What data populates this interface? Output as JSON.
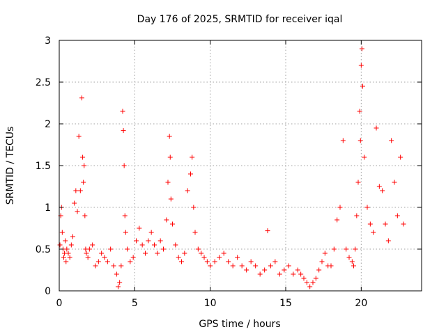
{
  "chart_data": {
    "type": "scatter",
    "title": "Day 176 of 2025, SRMTID for receiver iqal",
    "xlabel": "GPS time / hours",
    "ylabel": "SRMTID / TECUs",
    "xlim": [
      0,
      24
    ],
    "ylim": [
      0,
      3
    ],
    "x_ticks": [
      0,
      5,
      10,
      15,
      20
    ],
    "x_tick_labels": [
      "0",
      "5",
      "10",
      "15",
      "20"
    ],
    "y_ticks": [
      0,
      0.5,
      1,
      1.5,
      2,
      2.5,
      3
    ],
    "y_tick_labels": [
      "0",
      "0.5",
      "1",
      "1.5",
      "2",
      "2.5",
      "3"
    ],
    "grid": true,
    "marker": "+",
    "color": "#ff0000",
    "series": [
      {
        "name": "SRMTID",
        "x": [
          0.05,
          0.1,
          0.15,
          0.2,
          0.25,
          0.3,
          0.35,
          0.4,
          0.45,
          0.5,
          0.6,
          0.7,
          0.8,
          0.9,
          1.0,
          1.1,
          1.2,
          1.3,
          1.4,
          1.5,
          1.55,
          1.6,
          1.65,
          1.7,
          1.75,
          1.8,
          1.9,
          2.0,
          2.2,
          2.4,
          2.6,
          2.8,
          3.0,
          3.2,
          3.4,
          3.6,
          3.8,
          3.9,
          4.0,
          4.1,
          4.2,
          4.25,
          4.3,
          4.35,
          4.4,
          4.5,
          4.7,
          4.9,
          5.1,
          5.3,
          5.5,
          5.7,
          5.9,
          6.1,
          6.3,
          6.5,
          6.7,
          6.9,
          7.1,
          7.2,
          7.3,
          7.35,
          7.4,
          7.5,
          7.7,
          7.9,
          8.1,
          8.3,
          8.5,
          8.7,
          8.8,
          8.9,
          9.0,
          9.2,
          9.4,
          9.6,
          9.8,
          10.0,
          10.3,
          10.6,
          10.9,
          11.2,
          11.5,
          11.8,
          12.1,
          12.4,
          12.7,
          13.0,
          13.3,
          13.6,
          13.8,
          14.0,
          14.3,
          14.6,
          14.9,
          15.2,
          15.5,
          15.8,
          16.0,
          16.2,
          16.4,
          16.6,
          16.8,
          17.0,
          17.2,
          17.4,
          17.6,
          17.8,
          18.0,
          18.2,
          18.4,
          18.6,
          18.8,
          19.0,
          19.2,
          19.4,
          19.5,
          19.6,
          19.7,
          19.8,
          19.9,
          19.95,
          20.0,
          20.05,
          20.1,
          20.2,
          20.4,
          20.6,
          20.8,
          21.0,
          21.2,
          21.4,
          21.6,
          21.8,
          22.0,
          22.2,
          22.4,
          22.6,
          22.8
        ],
        "y": [
          0.55,
          0.9,
          1.0,
          0.7,
          0.5,
          0.4,
          0.45,
          0.6,
          0.35,
          0.5,
          0.45,
          0.4,
          0.55,
          0.65,
          1.05,
          1.2,
          0.95,
          1.85,
          1.2,
          2.31,
          1.6,
          1.3,
          1.5,
          0.9,
          0.5,
          0.45,
          0.4,
          0.5,
          0.55,
          0.3,
          0.35,
          0.45,
          0.4,
          0.35,
          0.5,
          0.3,
          0.2,
          0.05,
          0.1,
          0.3,
          2.15,
          1.92,
          1.5,
          0.9,
          0.7,
          0.5,
          0.35,
          0.4,
          0.6,
          0.75,
          0.55,
          0.45,
          0.6,
          0.7,
          0.55,
          0.45,
          0.6,
          0.5,
          0.85,
          1.3,
          1.85,
          1.6,
          1.1,
          0.8,
          0.55,
          0.4,
          0.35,
          0.45,
          1.2,
          1.4,
          1.6,
          1.0,
          0.7,
          0.5,
          0.45,
          0.4,
          0.35,
          0.3,
          0.35,
          0.4,
          0.45,
          0.35,
          0.3,
          0.4,
          0.3,
          0.25,
          0.35,
          0.3,
          0.2,
          0.25,
          0.72,
          0.3,
          0.35,
          0.2,
          0.25,
          0.3,
          0.2,
          0.25,
          0.2,
          0.15,
          0.1,
          0.05,
          0.1,
          0.15,
          0.25,
          0.35,
          0.45,
          0.3,
          0.3,
          0.5,
          0.85,
          1.0,
          1.8,
          0.5,
          0.4,
          0.35,
          0.3,
          0.5,
          0.9,
          1.3,
          2.15,
          1.8,
          2.7,
          2.9,
          2.45,
          1.6,
          1.0,
          0.8,
          0.7,
          1.95,
          1.25,
          1.2,
          0.8,
          0.6,
          1.8,
          1.3,
          0.9,
          1.6,
          0.8
        ]
      }
    ]
  }
}
